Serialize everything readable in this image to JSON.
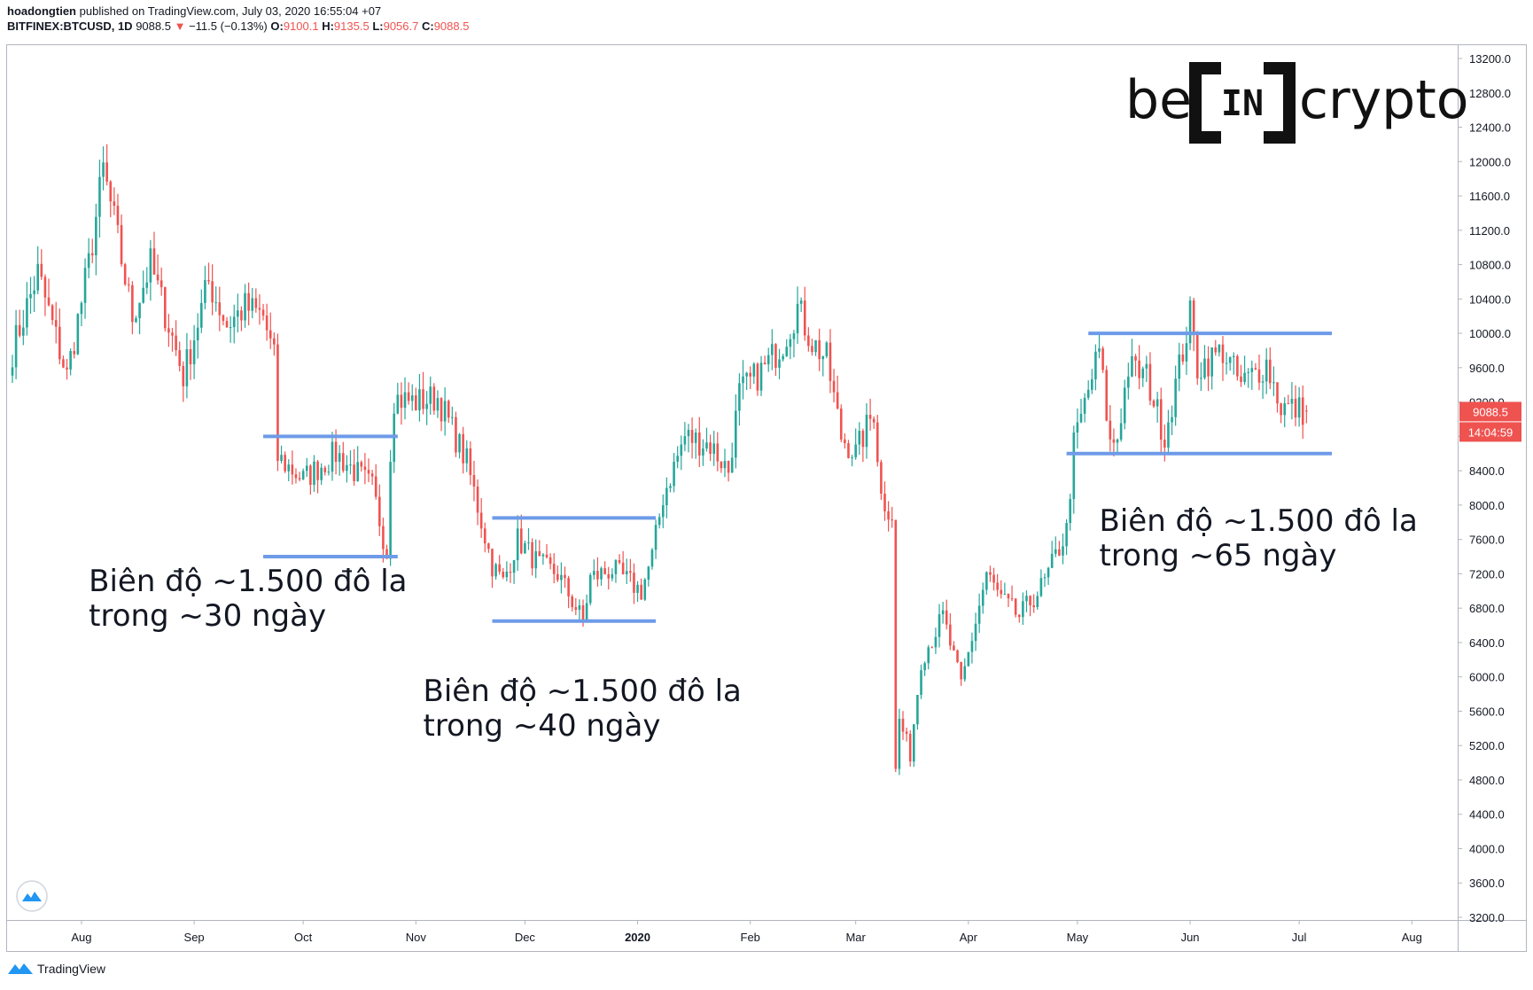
{
  "header": {
    "author": "hoadongtien",
    "published": "published on TradingView.com, July 03, 2020 16:55:04 +07",
    "symbol": "BITFINEX:BTCUSD, 1D",
    "last": "9088.5",
    "change_arrow": "▼",
    "change": "−11.5 (−0.13%)",
    "o_label": "O:",
    "o_value": "9100.1",
    "h_label": "H:",
    "h_value": "9135.5",
    "l_label": "L:",
    "l_value": "9056.7",
    "c_label": "C:",
    "c_value": "9088.5"
  },
  "logo": {
    "left": "be",
    "mid": "IN",
    "right": "crypto"
  },
  "footer": {
    "brand": "TradingView"
  },
  "colors": {
    "up": "#26a69a",
    "down": "#ef5350",
    "level": "#6e9be8",
    "axis": "#131722",
    "price_tag": "#ef5350"
  },
  "chart_data": {
    "type": "candlestick",
    "symbol": "BITFINEX:BTCUSD",
    "interval": "1D",
    "ylim": [
      3200,
      13200
    ],
    "y_ticks": [
      3200,
      3600,
      4000,
      4400,
      4800,
      5200,
      5600,
      6000,
      6400,
      6800,
      7200,
      7600,
      8000,
      8400,
      8800,
      9200,
      9600,
      10000,
      10400,
      10800,
      11200,
      11600,
      12000,
      12400,
      12800,
      13200
    ],
    "y_tick_labels": [
      "3200.0",
      "3600.0",
      "4000.0",
      "4400.0",
      "4800.0",
      "5200.0",
      "5600.0",
      "6000.0",
      "6400.0",
      "6800.0",
      "7200.0",
      "7600.0",
      "8000.0",
      "8400.0",
      "8800.0",
      "9200.0",
      "9600.0",
      "10000.0",
      "10400.0",
      "10800.0",
      "11200.0",
      "11600.0",
      "12000.0",
      "12400.0",
      "12800.0",
      "13200.0"
    ],
    "x_start": "2019-07-13",
    "x_end": "2020-08-08",
    "x_ticks": [
      {
        "label": "Aug",
        "date": "2019-08-01"
      },
      {
        "label": "Sep",
        "date": "2019-09-01"
      },
      {
        "label": "Oct",
        "date": "2019-10-01"
      },
      {
        "label": "Nov",
        "date": "2019-11-01"
      },
      {
        "label": "Dec",
        "date": "2019-12-01"
      },
      {
        "label": "2020",
        "date": "2020-01-01",
        "bold": true
      },
      {
        "label": "Feb",
        "date": "2020-02-01"
      },
      {
        "label": "Mar",
        "date": "2020-03-01"
      },
      {
        "label": "Apr",
        "date": "2020-04-01"
      },
      {
        "label": "May",
        "date": "2020-05-01"
      },
      {
        "label": "Jun",
        "date": "2020-06-01"
      },
      {
        "label": "Jul",
        "date": "2020-07-01"
      },
      {
        "label": "Aug",
        "date": "2020-08-01"
      }
    ],
    "price_anchors": [
      {
        "date": "2019-07-13",
        "close": 9800
      },
      {
        "date": "2019-07-20",
        "close": 10700
      },
      {
        "date": "2019-07-28",
        "close": 9500
      },
      {
        "date": "2019-08-03",
        "close": 10800
      },
      {
        "date": "2019-08-07",
        "close": 11900
      },
      {
        "date": "2019-08-10",
        "close": 11300
      },
      {
        "date": "2019-08-15",
        "close": 10200
      },
      {
        "date": "2019-08-20",
        "close": 10800
      },
      {
        "date": "2019-08-25",
        "close": 10100
      },
      {
        "date": "2019-08-29",
        "close": 9500
      },
      {
        "date": "2019-09-05",
        "close": 10600
      },
      {
        "date": "2019-09-10",
        "close": 10100
      },
      {
        "date": "2019-09-15",
        "close": 10300
      },
      {
        "date": "2019-09-20",
        "close": 10200
      },
      {
        "date": "2019-09-23",
        "close": 9700
      },
      {
        "date": "2019-09-24",
        "close": 8550
      },
      {
        "date": "2019-10-01",
        "close": 8300
      },
      {
        "date": "2019-10-10",
        "close": 8600
      },
      {
        "date": "2019-10-20",
        "close": 8200
      },
      {
        "date": "2019-10-24",
        "close": 7450
      },
      {
        "date": "2019-10-25",
        "close": 8650
      },
      {
        "date": "2019-10-26",
        "close": 9250
      },
      {
        "date": "2019-11-01",
        "close": 9200
      },
      {
        "date": "2019-11-07",
        "close": 9250
      },
      {
        "date": "2019-11-15",
        "close": 8500
      },
      {
        "date": "2019-11-22",
        "close": 7300
      },
      {
        "date": "2019-11-25",
        "close": 7100
      },
      {
        "date": "2019-11-29",
        "close": 7600
      },
      {
        "date": "2019-12-05",
        "close": 7300
      },
      {
        "date": "2019-12-10",
        "close": 7200
      },
      {
        "date": "2019-12-17",
        "close": 6650
      },
      {
        "date": "2019-12-19",
        "close": 7150
      },
      {
        "date": "2019-12-25",
        "close": 7250
      },
      {
        "date": "2020-01-02",
        "close": 7000
      },
      {
        "date": "2020-01-05",
        "close": 7400
      },
      {
        "date": "2020-01-08",
        "close": 8100
      },
      {
        "date": "2020-01-14",
        "close": 8800
      },
      {
        "date": "2020-01-21",
        "close": 8700
      },
      {
        "date": "2020-01-26",
        "close": 8400
      },
      {
        "date": "2020-01-29",
        "close": 9300
      },
      {
        "date": "2020-02-05",
        "close": 9600
      },
      {
        "date": "2020-02-10",
        "close": 9900
      },
      {
        "date": "2020-02-14",
        "close": 10300
      },
      {
        "date": "2020-02-18",
        "close": 9900
      },
      {
        "date": "2020-02-22",
        "close": 9700
      },
      {
        "date": "2020-02-26",
        "close": 8800
      },
      {
        "date": "2020-03-01",
        "close": 8600
      },
      {
        "date": "2020-03-06",
        "close": 9100
      },
      {
        "date": "2020-03-08",
        "close": 8100
      },
      {
        "date": "2020-03-11",
        "close": 7900
      },
      {
        "date": "2020-03-12",
        "close": 4900
      },
      {
        "date": "2020-03-13",
        "close": 5500
      },
      {
        "date": "2020-03-16",
        "close": 5100
      },
      {
        "date": "2020-03-19",
        "close": 6200
      },
      {
        "date": "2020-03-25",
        "close": 6700
      },
      {
        "date": "2020-03-30",
        "close": 5900
      },
      {
        "date": "2020-04-06",
        "close": 7200
      },
      {
        "date": "2020-04-10",
        "close": 6900
      },
      {
        "date": "2020-04-15",
        "close": 6700
      },
      {
        "date": "2020-04-22",
        "close": 7100
      },
      {
        "date": "2020-04-28",
        "close": 7700
      },
      {
        "date": "2020-04-30",
        "close": 8700
      },
      {
        "date": "2020-05-07",
        "close": 9800
      },
      {
        "date": "2020-05-10",
        "close": 8700
      },
      {
        "date": "2020-05-12",
        "close": 8800
      },
      {
        "date": "2020-05-15",
        "close": 9600
      },
      {
        "date": "2020-05-20",
        "close": 9500
      },
      {
        "date": "2020-05-25",
        "close": 8800
      },
      {
        "date": "2020-06-01",
        "close": 10200
      },
      {
        "date": "2020-06-03",
        "close": 9600
      },
      {
        "date": "2020-06-10",
        "close": 9800
      },
      {
        "date": "2020-06-15",
        "close": 9400
      },
      {
        "date": "2020-06-22",
        "close": 9650
      },
      {
        "date": "2020-06-26",
        "close": 9150
      },
      {
        "date": "2020-07-03",
        "close": 9088.5
      }
    ],
    "last_price": 9088.5,
    "last_price_label": "9088.5",
    "countdown_label": "14:04:59",
    "levels": [
      {
        "price": 8800,
        "from": "2019-09-20",
        "to": "2019-10-27"
      },
      {
        "price": 7400,
        "from": "2019-09-20",
        "to": "2019-10-27"
      },
      {
        "price": 7850,
        "from": "2019-11-22",
        "to": "2020-01-06"
      },
      {
        "price": 6650,
        "from": "2019-11-22",
        "to": "2020-01-06"
      },
      {
        "price": 10000,
        "from": "2020-05-04",
        "to": "2020-07-10"
      },
      {
        "price": 8600,
        "from": "2020-04-28",
        "to": "2020-07-10"
      }
    ],
    "annotations": [
      {
        "lines": [
          "Biên độ ~1.500 đô la",
          "trong ~30 ngày"
        ],
        "date": "2019-08-03",
        "price": 7000
      },
      {
        "lines": [
          "Biên độ ~1.500 đô la",
          "trong ~40 ngày"
        ],
        "date": "2019-11-03",
        "price": 5720
      },
      {
        "lines": [
          "Biên độ ~1.500 đô la",
          "trong ~65 ngày"
        ],
        "date": "2020-05-07",
        "price": 7700
      }
    ]
  }
}
